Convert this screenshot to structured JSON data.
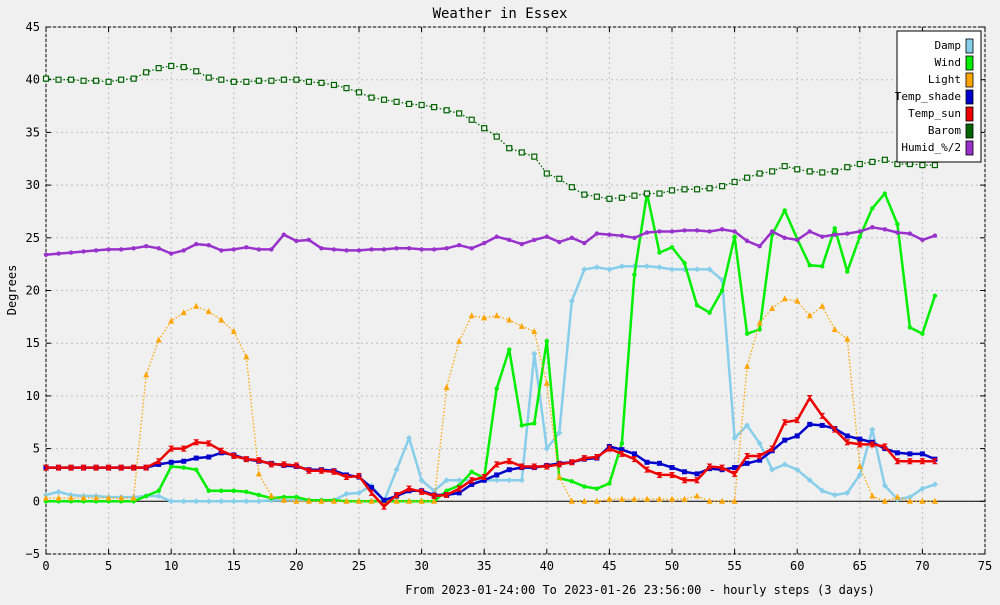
{
  "chart_data": {
    "type": "line",
    "title": "Weather in Essex",
    "xlabel": "From 2023-01-24:00 To 2023-01-26 23:56:00 - hourly steps (3 days)",
    "ylabel": "Degrees",
    "xlim": [
      0,
      75
    ],
    "ylim": [
      -5,
      45
    ],
    "x_ticks": [
      0,
      5,
      10,
      15,
      20,
      25,
      30,
      35,
      40,
      45,
      50,
      55,
      60,
      65,
      70,
      75
    ],
    "y_ticks": [
      -5,
      0,
      5,
      10,
      15,
      20,
      25,
      30,
      35,
      40,
      45
    ],
    "grid": true,
    "legend_position": "top-right",
    "series": [
      {
        "name": "Damp",
        "color": "#87ceeb",
        "style": "solid",
        "marker": "diamond",
        "x": [
          0,
          1,
          2,
          3,
          4,
          5,
          6,
          7,
          8,
          9,
          10,
          11,
          12,
          13,
          14,
          15,
          16,
          17,
          18,
          19,
          20,
          21,
          22,
          23,
          24,
          25,
          26,
          27,
          28,
          29,
          30,
          31,
          32,
          33,
          34,
          35,
          36,
          37,
          38,
          39,
          40,
          41,
          42,
          43,
          44,
          45,
          46,
          47,
          48,
          49,
          50,
          51,
          52,
          53,
          54,
          55,
          56,
          57,
          58,
          59,
          60,
          61,
          62,
          63,
          64,
          65,
          66,
          67,
          68,
          69,
          70,
          71
        ],
        "y": [
          0.6,
          0.9,
          0.6,
          0.5,
          0.5,
          0.4,
          0.4,
          0.4,
          0.5,
          0.5,
          0.0,
          0.0,
          0.0,
          0.0,
          0.0,
          0.0,
          0.0,
          0.0,
          0.1,
          0.1,
          0.1,
          0.1,
          0.1,
          0.1,
          0.7,
          0.8,
          1.5,
          0.0,
          3.0,
          6.0,
          2.0,
          1.0,
          2.0,
          2.0,
          2.0,
          2.0,
          2.0,
          2.0,
          2.0,
          14.0,
          5.0,
          6.5,
          19.0,
          22.0,
          22.2,
          22.0,
          22.3,
          22.3,
          22.3,
          22.2,
          22.0,
          22.0,
          22.0,
          22.0,
          21.0,
          6.0,
          7.2,
          5.5,
          3.0,
          3.5,
          3.0,
          2.0,
          1.0,
          0.6,
          0.8,
          2.5,
          6.8,
          1.5,
          0.2,
          0.4,
          1.2,
          1.6
        ]
      },
      {
        "name": "Wind",
        "color": "#00ee00",
        "style": "solid",
        "marker": "circle",
        "x": [
          0,
          1,
          2,
          3,
          4,
          5,
          6,
          7,
          8,
          9,
          10,
          11,
          12,
          13,
          14,
          15,
          16,
          17,
          18,
          19,
          20,
          21,
          22,
          23,
          24,
          25,
          26,
          27,
          28,
          29,
          30,
          31,
          32,
          33,
          34,
          35,
          36,
          37,
          38,
          39,
          40,
          41,
          42,
          43,
          44,
          45,
          46,
          47,
          48,
          49,
          50,
          51,
          52,
          53,
          54,
          55,
          56,
          57,
          58,
          59,
          60,
          61,
          62,
          63,
          64,
          65,
          66,
          67,
          68,
          69,
          70,
          71
        ],
        "y": [
          0.0,
          0.0,
          0.0,
          0.0,
          0.0,
          0.0,
          0.0,
          0.0,
          0.5,
          1.0,
          3.3,
          3.2,
          3.0,
          1.0,
          1.0,
          1.0,
          0.9,
          0.6,
          0.3,
          0.4,
          0.4,
          0.1,
          0.1,
          0.1,
          0.0,
          0.0,
          0.0,
          0.0,
          0.0,
          0.0,
          0.0,
          0.0,
          1.0,
          1.5,
          2.8,
          2.2,
          10.7,
          14.4,
          7.2,
          7.4,
          15.2,
          2.2,
          1.9,
          1.4,
          1.2,
          1.7,
          5.5,
          21.5,
          29.2,
          23.6,
          24.1,
          22.6,
          18.6,
          17.9,
          20.0,
          25.1,
          15.9,
          16.3,
          25.3,
          27.6,
          24.9,
          22.4,
          22.3,
          25.9,
          21.8,
          25.1,
          27.8,
          29.2,
          26.3,
          16.5,
          15.9,
          19.5
        ]
      },
      {
        "name": "Light",
        "color": "#ffa500",
        "style": "dotted",
        "marker": "triangle",
        "x": [
          0,
          1,
          2,
          3,
          4,
          5,
          6,
          7,
          8,
          9,
          10,
          11,
          12,
          13,
          14,
          15,
          16,
          17,
          18,
          19,
          20,
          21,
          22,
          23,
          24,
          25,
          26,
          27,
          28,
          29,
          30,
          31,
          32,
          33,
          34,
          35,
          36,
          37,
          38,
          39,
          40,
          41,
          42,
          43,
          44,
          45,
          46,
          47,
          48,
          49,
          50,
          51,
          52,
          53,
          54,
          55,
          56,
          57,
          58,
          59,
          60,
          61,
          62,
          63,
          64,
          65,
          66,
          67,
          68,
          69,
          70,
          71
        ],
        "y": [
          0.3,
          0.3,
          0.3,
          0.3,
          0.3,
          0.3,
          0.3,
          0.3,
          12.0,
          15.3,
          17.1,
          17.9,
          18.5,
          18.0,
          17.2,
          16.1,
          13.7,
          2.6,
          0.5,
          0.1,
          0.0,
          0.0,
          0.0,
          0.0,
          0.0,
          0.0,
          0.0,
          0.0,
          0.0,
          0.0,
          0.0,
          0.0,
          10.8,
          15.2,
          17.6,
          17.4,
          17.6,
          17.2,
          16.6,
          16.1,
          11.2,
          2.3,
          0.0,
          0.0,
          0.0,
          0.2,
          0.2,
          0.2,
          0.2,
          0.2,
          0.2,
          0.2,
          0.5,
          0.0,
          0.0,
          0.0,
          12.8,
          16.9,
          18.3,
          19.2,
          19.0,
          17.6,
          18.5,
          16.3,
          15.4,
          3.3,
          0.5,
          0.0,
          0.4,
          0.0,
          0.0,
          0.0
        ]
      },
      {
        "name": "Temp_shade",
        "color": "#0000cc",
        "style": "solid",
        "marker": "square",
        "x": [
          0,
          1,
          2,
          3,
          4,
          5,
          6,
          7,
          8,
          9,
          10,
          11,
          12,
          13,
          14,
          15,
          16,
          17,
          18,
          19,
          20,
          21,
          22,
          23,
          24,
          25,
          26,
          27,
          28,
          29,
          30,
          31,
          32,
          33,
          34,
          35,
          36,
          37,
          38,
          39,
          40,
          41,
          42,
          43,
          44,
          45,
          46,
          47,
          48,
          49,
          50,
          51,
          52,
          53,
          54,
          55,
          56,
          57,
          58,
          59,
          60,
          61,
          62,
          63,
          64,
          65,
          66,
          67,
          68,
          69,
          70,
          71
        ],
        "y": [
          3.2,
          3.2,
          3.2,
          3.2,
          3.2,
          3.2,
          3.2,
          3.2,
          3.2,
          3.5,
          3.7,
          3.8,
          4.1,
          4.2,
          4.6,
          4.4,
          4.0,
          3.8,
          3.6,
          3.4,
          3.3,
          3.0,
          3.0,
          2.9,
          2.5,
          2.3,
          1.3,
          0.1,
          0.5,
          1.0,
          1.0,
          0.6,
          0.6,
          0.8,
          1.6,
          2.0,
          2.5,
          3.0,
          3.2,
          3.2,
          3.4,
          3.6,
          3.7,
          4.0,
          4.1,
          5.2,
          4.9,
          4.5,
          3.7,
          3.6,
          3.2,
          2.8,
          2.6,
          3.1,
          3.0,
          3.2,
          3.6,
          3.9,
          4.8,
          5.8,
          6.2,
          7.3,
          7.2,
          6.9,
          6.2,
          5.9,
          5.6,
          5.0,
          4.6,
          4.5,
          4.5,
          4.0
        ]
      },
      {
        "name": "Temp_sun",
        "color": "#ee0000",
        "style": "solid",
        "marker": "hourglass",
        "x": [
          0,
          1,
          2,
          3,
          4,
          5,
          6,
          7,
          8,
          9,
          10,
          11,
          12,
          13,
          14,
          15,
          16,
          17,
          18,
          19,
          20,
          21,
          22,
          23,
          24,
          25,
          26,
          27,
          28,
          29,
          30,
          31,
          32,
          33,
          34,
          35,
          36,
          37,
          38,
          39,
          40,
          41,
          42,
          43,
          44,
          45,
          46,
          47,
          48,
          49,
          50,
          51,
          52,
          53,
          54,
          55,
          56,
          57,
          58,
          59,
          60,
          61,
          62,
          63,
          64,
          65,
          66,
          67,
          68,
          69,
          70,
          71
        ],
        "y": [
          3.2,
          3.2,
          3.2,
          3.2,
          3.2,
          3.2,
          3.2,
          3.2,
          3.2,
          3.8,
          5.0,
          5.0,
          5.6,
          5.5,
          4.8,
          4.3,
          4.0,
          3.9,
          3.5,
          3.5,
          3.4,
          2.9,
          2.9,
          2.8,
          2.3,
          2.4,
          0.8,
          -0.5,
          0.6,
          1.2,
          0.9,
          0.5,
          0.6,
          1.2,
          2.0,
          2.3,
          3.5,
          3.8,
          3.3,
          3.3,
          3.3,
          3.5,
          3.7,
          4.1,
          4.2,
          5.0,
          4.5,
          4.0,
          3.0,
          2.5,
          2.5,
          2.0,
          2.0,
          3.3,
          3.2,
          2.6,
          4.3,
          4.3,
          5.0,
          7.5,
          7.7,
          9.8,
          8.1,
          6.8,
          5.6,
          5.4,
          5.4,
          5.2,
          3.8,
          3.8,
          3.8,
          3.8
        ]
      },
      {
        "name": "Barom",
        "color": "#006400",
        "style": "dotted",
        "marker": "open-square",
        "x": [
          0,
          1,
          2,
          3,
          4,
          5,
          6,
          7,
          8,
          9,
          10,
          11,
          12,
          13,
          14,
          15,
          16,
          17,
          18,
          19,
          20,
          21,
          22,
          23,
          24,
          25,
          26,
          27,
          28,
          29,
          30,
          31,
          32,
          33,
          34,
          35,
          36,
          37,
          38,
          39,
          40,
          41,
          42,
          43,
          44,
          45,
          46,
          47,
          48,
          49,
          50,
          51,
          52,
          53,
          54,
          55,
          56,
          57,
          58,
          59,
          60,
          61,
          62,
          63,
          64,
          65,
          66,
          67,
          68,
          69,
          70,
          71
        ],
        "y": [
          40.1,
          40.0,
          40.0,
          39.9,
          39.9,
          39.8,
          40.0,
          40.1,
          40.7,
          41.1,
          41.3,
          41.2,
          40.8,
          40.2,
          40.0,
          39.8,
          39.8,
          39.9,
          39.9,
          40.0,
          40.0,
          39.8,
          39.7,
          39.5,
          39.2,
          38.8,
          38.3,
          38.1,
          37.9,
          37.7,
          37.6,
          37.4,
          37.1,
          36.8,
          36.2,
          35.4,
          34.6,
          33.5,
          33.1,
          32.7,
          31.1,
          30.6,
          29.8,
          29.1,
          28.9,
          28.7,
          28.8,
          29.0,
          29.2,
          29.2,
          29.5,
          29.6,
          29.6,
          29.7,
          29.9,
          30.3,
          30.7,
          31.1,
          31.3,
          31.8,
          31.5,
          31.3,
          31.2,
          31.3,
          31.7,
          32.0,
          32.2,
          32.4,
          32.0,
          32.0,
          31.9,
          31.9
        ]
      },
      {
        "name": "Humid_%/2",
        "color": "#9932cc",
        "style": "solid",
        "marker": "circle",
        "x": [
          0,
          1,
          2,
          3,
          4,
          5,
          6,
          7,
          8,
          9,
          10,
          11,
          12,
          13,
          14,
          15,
          16,
          17,
          18,
          19,
          20,
          21,
          22,
          23,
          24,
          25,
          26,
          27,
          28,
          29,
          30,
          31,
          32,
          33,
          34,
          35,
          36,
          37,
          38,
          39,
          40,
          41,
          42,
          43,
          44,
          45,
          46,
          47,
          48,
          49,
          50,
          51,
          52,
          53,
          54,
          55,
          56,
          57,
          58,
          59,
          60,
          61,
          62,
          63,
          64,
          65,
          66,
          67,
          68,
          69,
          70,
          71
        ],
        "y": [
          23.4,
          23.5,
          23.6,
          23.7,
          23.8,
          23.9,
          23.9,
          24.0,
          24.2,
          24.0,
          23.5,
          23.8,
          24.4,
          24.3,
          23.8,
          23.9,
          24.1,
          23.9,
          23.9,
          25.3,
          24.7,
          24.8,
          24.0,
          23.9,
          23.8,
          23.8,
          23.9,
          23.9,
          24.0,
          24.0,
          23.9,
          23.9,
          24.0,
          24.3,
          24.0,
          24.5,
          25.1,
          24.8,
          24.4,
          24.8,
          25.1,
          24.6,
          25.0,
          24.5,
          25.4,
          25.3,
          25.2,
          25.0,
          25.5,
          25.6,
          25.6,
          25.7,
          25.7,
          25.6,
          25.8,
          25.6,
          24.7,
          24.2,
          25.6,
          25.0,
          24.8,
          25.6,
          25.1,
          25.3,
          25.4,
          25.6,
          26.0,
          25.8,
          25.5,
          25.4,
          24.8,
          25.2
        ]
      }
    ]
  }
}
